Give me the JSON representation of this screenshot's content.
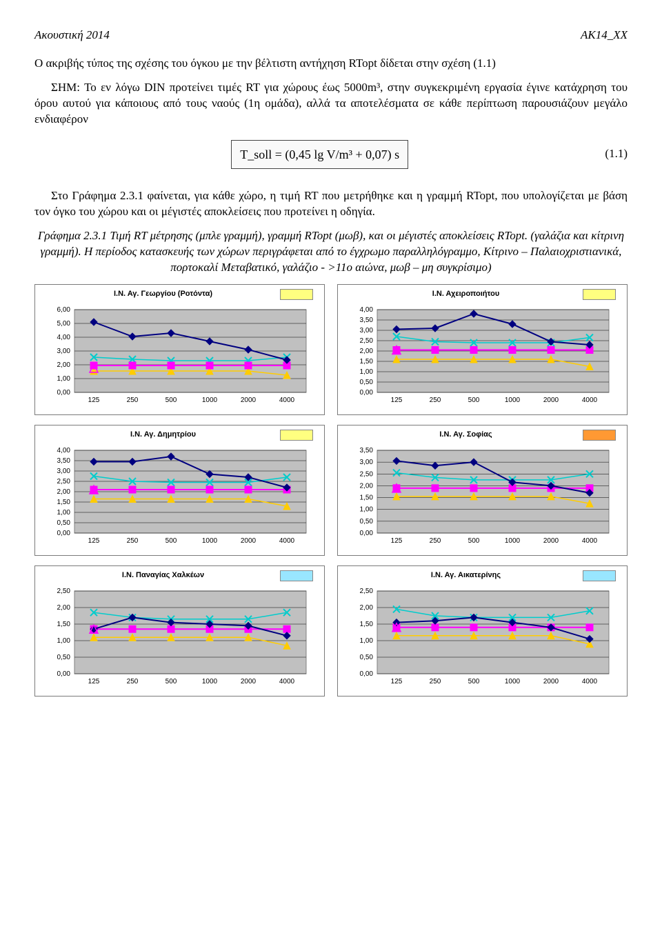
{
  "header": {
    "left": "Ακουστική 2014",
    "right": "ΑΚ14_XX"
  },
  "para1": "Ο ακριβής τύπος της σχέσης του όγκου με την βέλτιστη αντήχηση RTopt δίδεται στην σχέση (1.1)",
  "para2": "ΣΗΜ: Το εν λόγω DIN προτείνει τιμές RT για χώρους έως 5000m³, στην συγκεκριμένη εργασία έγινε κατάχρηση του όρου αυτού για κάποιους από τους ναούς (1η ομάδα), αλλά τα αποτελέσματα σε κάθε περίπτωση παρουσιάζουν μεγάλο ενδιαφέρον",
  "formula": "T_soll = (0,45 lg V/m³ + 0,07) s",
  "formula_num": "(1.1)",
  "para3": "Στο Γράφημα 2.3.1 φαίνεται, για κάθε χώρο, η τιμή RT που μετρήθηκε και η γραμμή RTopt, που υπολογίζεται με βάση τον όγκο του χώρου και οι μέγιστές αποκλείσεις που προτείνει η οδηγία.",
  "para4": "Γράφημα 2.3.1 Τιμή RT μέτρησης (μπλε γραμμή), γραμμή RTopt (μωβ), και οι μέγιστές αποκλείσεις RTopt. (γαλάζια και κίτρινη γραμμή). Η περίοδος κατασκευής των χώρων περιγράφεται από το έγχρωμο παραλληλόγραμμο, Κίτρινο – Παλαιοχριστιανικά, πορτοκαλί Μεταβατικό, γαλάζιο - >11ο αιώνα, μωβ – μη συγκρίσιμο)",
  "x_categories": [
    "125",
    "250",
    "500",
    "1000",
    "2000",
    "4000"
  ],
  "series_styles": {
    "rt": {
      "color": "#000080",
      "marker": "diamond",
      "size": 5,
      "lw": 2
    },
    "opt": {
      "color": "#ff00ff",
      "marker": "square",
      "size": 5,
      "lw": 2
    },
    "hi": {
      "color": "#00cccc",
      "marker": "x",
      "size": 5,
      "lw": 1.5
    },
    "lo": {
      "color": "#ffcc00",
      "marker": "triangle",
      "size": 5,
      "lw": 1.5
    },
    "open": {
      "color": "#ff00ff",
      "marker": "open-tri",
      "size": 6,
      "lw": 0
    }
  },
  "plot_bg": "#c0c0c0",
  "grid_color": "#000000",
  "charts": [
    {
      "title": "Ι.Ν. Αγ. Γεωργίου (Ροτόντα)",
      "swatch": "#ffff80",
      "ymax": 6.0,
      "ystep": 1.0,
      "rt": [
        5.1,
        4.05,
        4.3,
        3.7,
        3.1,
        2.35
      ],
      "opt": [
        1.95,
        1.95,
        1.95,
        1.95,
        1.95,
        1.95
      ],
      "hi": [
        2.55,
        2.4,
        2.3,
        2.3,
        2.3,
        2.55
      ],
      "lo": [
        1.55,
        1.55,
        1.55,
        1.55,
        1.55,
        1.25
      ],
      "open": [
        1.75,
        null,
        null,
        null,
        null,
        null
      ]
    },
    {
      "title": "Ι.Ν. Αχειροποιήτου",
      "swatch": "#ffff80",
      "ymax": 4.0,
      "ystep": 0.5,
      "rt": [
        3.05,
        3.1,
        3.8,
        3.3,
        2.45,
        2.3
      ],
      "opt": [
        2.05,
        2.05,
        2.05,
        2.05,
        2.05,
        2.05
      ],
      "hi": [
        2.7,
        2.45,
        2.4,
        2.4,
        2.4,
        2.65
      ],
      "lo": [
        1.6,
        1.6,
        1.6,
        1.6,
        1.6,
        1.25
      ],
      "open": [
        2.05,
        null,
        null,
        null,
        null,
        null
      ]
    },
    {
      "title": "Ι.Ν. Αγ. Δημητρίου",
      "swatch": "#ffff80",
      "ymax": 4.0,
      "ystep": 0.5,
      "rt": [
        3.45,
        3.45,
        3.7,
        2.85,
        2.7,
        2.2
      ],
      "opt": [
        2.1,
        2.1,
        2.1,
        2.1,
        2.1,
        2.1
      ],
      "hi": [
        2.75,
        2.5,
        2.45,
        2.45,
        2.45,
        2.7
      ],
      "lo": [
        1.65,
        1.65,
        1.65,
        1.65,
        1.65,
        1.3
      ],
      "open": [
        2.1,
        null,
        null,
        null,
        null,
        null
      ]
    },
    {
      "title": "Ι.Ν. Αγ. Σοφίας",
      "swatch": "#ff9933",
      "ymax": 3.5,
      "ystep": 0.5,
      "rt": [
        3.05,
        2.85,
        3.0,
        2.15,
        2.0,
        1.7
      ],
      "opt": [
        1.9,
        1.9,
        1.9,
        1.9,
        1.9,
        1.9
      ],
      "hi": [
        2.55,
        2.35,
        2.25,
        2.25,
        2.25,
        2.5
      ],
      "lo": [
        1.55,
        1.55,
        1.55,
        1.55,
        1.55,
        1.25
      ],
      "open": [
        1.9,
        null,
        null,
        null,
        null,
        null
      ]
    },
    {
      "title": "Ι.Ν. Παναγίας Χαλκέων",
      "swatch": "#99e6ff",
      "ymax": 2.5,
      "ystep": 0.5,
      "rt": [
        1.35,
        1.7,
        1.55,
        1.5,
        1.45,
        1.15
      ],
      "opt": [
        1.35,
        1.35,
        1.35,
        1.35,
        1.35,
        1.35
      ],
      "hi": [
        1.85,
        1.7,
        1.65,
        1.65,
        1.65,
        1.85
      ],
      "lo": [
        1.1,
        1.1,
        1.1,
        1.1,
        1.1,
        0.85
      ],
      "open": [
        1.35,
        null,
        null,
        null,
        null,
        null
      ]
    },
    {
      "title": "Ι.Ν. Αγ. Αικατερίνης",
      "swatch": "#99e6ff",
      "ymax": 2.5,
      "ystep": 0.5,
      "rt": [
        1.55,
        1.6,
        1.7,
        1.55,
        1.4,
        1.05
      ],
      "opt": [
        1.4,
        1.4,
        1.4,
        1.4,
        1.4,
        1.4
      ],
      "hi": [
        1.95,
        1.75,
        1.7,
        1.7,
        1.7,
        1.9
      ],
      "lo": [
        1.15,
        1.15,
        1.15,
        1.15,
        1.15,
        0.9
      ],
      "open": [
        1.4,
        null,
        null,
        null,
        null,
        null
      ]
    }
  ]
}
